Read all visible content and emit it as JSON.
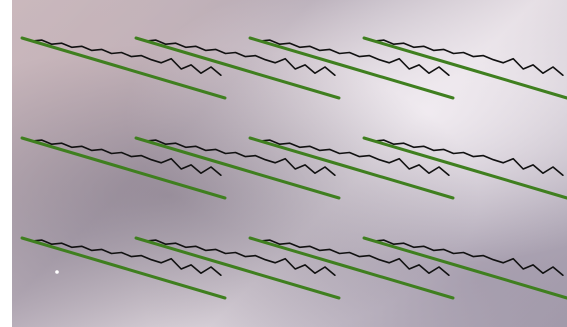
{
  "chart_data": [
    {
      "type": "line",
      "series": [
        {
          "color": "#111111",
          "values": [
            100,
            97,
            98,
            94,
            95,
            91,
            92,
            88,
            89,
            85,
            86,
            82,
            83,
            79,
            76,
            80,
            70,
            74,
            66,
            72,
            64
          ]
        },
        {
          "color": "#3f7f1f",
          "values": [
            100,
            71,
            42
          ]
        }
      ]
    },
    {
      "type": "line",
      "series": [
        {
          "color": "#111111",
          "values": [
            100,
            97,
            98,
            94,
            95,
            91,
            92,
            88,
            89,
            85,
            86,
            82,
            83,
            79,
            76,
            80,
            70,
            74,
            66,
            72,
            64
          ]
        },
        {
          "color": "#3f7f1f",
          "values": [
            100,
            71,
            42
          ]
        }
      ]
    },
    {
      "type": "line",
      "series": [
        {
          "color": "#111111",
          "values": [
            100,
            97,
            98,
            94,
            95,
            91,
            92,
            88,
            89,
            85,
            86,
            82,
            83,
            79,
            76,
            80,
            70,
            74,
            66,
            72,
            64
          ]
        },
        {
          "color": "#3f7f1f",
          "values": [
            100,
            71,
            42
          ]
        }
      ]
    },
    {
      "type": "line",
      "series": [
        {
          "color": "#111111",
          "values": [
            100,
            97,
            98,
            94,
            95,
            91,
            92,
            88,
            89,
            85,
            86,
            82,
            83,
            79,
            76,
            80,
            70,
            74,
            66,
            72,
            64
          ]
        },
        {
          "color": "#3f7f1f",
          "values": [
            100,
            71,
            42
          ]
        }
      ]
    },
    {
      "type": "line",
      "series": [
        {
          "color": "#111111",
          "values": [
            100,
            97,
            98,
            94,
            95,
            91,
            92,
            88,
            89,
            85,
            86,
            82,
            83,
            79,
            76,
            80,
            70,
            74,
            66,
            72,
            64
          ]
        },
        {
          "color": "#3f7f1f",
          "values": [
            100,
            71,
            42
          ]
        }
      ]
    },
    {
      "type": "line",
      "series": [
        {
          "color": "#111111",
          "values": [
            100,
            97,
            98,
            94,
            95,
            91,
            92,
            88,
            89,
            85,
            86,
            82,
            83,
            79,
            76,
            80,
            70,
            74,
            66,
            72,
            64
          ]
        },
        {
          "color": "#3f7f1f",
          "values": [
            100,
            71,
            42
          ]
        }
      ]
    },
    {
      "type": "line",
      "series": [
        {
          "color": "#111111",
          "values": [
            100,
            97,
            98,
            94,
            95,
            91,
            92,
            88,
            89,
            85,
            86,
            82,
            83,
            79,
            76,
            80,
            70,
            74,
            66,
            72,
            64
          ]
        },
        {
          "color": "#3f7f1f",
          "values": [
            100,
            71,
            42
          ]
        }
      ]
    },
    {
      "type": "line",
      "series": [
        {
          "color": "#111111",
          "values": [
            100,
            97,
            98,
            94,
            95,
            91,
            92,
            88,
            89,
            85,
            86,
            82,
            83,
            79,
            76,
            80,
            70,
            74,
            66,
            72,
            64
          ]
        },
        {
          "color": "#3f7f1f",
          "values": [
            100,
            71,
            42
          ]
        }
      ]
    },
    {
      "type": "line",
      "series": [
        {
          "color": "#111111",
          "values": [
            100,
            97,
            98,
            94,
            95,
            91,
            92,
            88,
            89,
            85,
            86,
            82,
            83,
            79,
            76,
            80,
            70,
            74,
            66,
            72,
            64
          ]
        },
        {
          "color": "#3f7f1f",
          "values": [
            100,
            71,
            42
          ]
        }
      ]
    },
    {
      "type": "line",
      "series": [
        {
          "color": "#111111",
          "values": [
            100,
            97,
            98,
            94,
            95,
            91,
            92,
            88,
            89,
            85,
            86,
            82,
            83,
            79,
            76,
            80,
            70,
            74,
            66,
            72,
            64
          ]
        },
        {
          "color": "#3f7f1f",
          "values": [
            100,
            71,
            42
          ]
        }
      ]
    },
    {
      "type": "line",
      "series": [
        {
          "color": "#111111",
          "values": [
            100,
            97,
            98,
            94,
            95,
            91,
            92,
            88,
            89,
            85,
            86,
            82,
            83,
            79,
            76,
            80,
            70,
            74,
            66,
            72,
            64
          ]
        },
        {
          "color": "#3f7f1f",
          "values": [
            100,
            71,
            42
          ]
        }
      ]
    },
    {
      "type": "line",
      "series": [
        {
          "color": "#111111",
          "values": [
            100,
            97,
            98,
            94,
            95,
            91,
            92,
            88,
            89,
            85,
            86,
            82,
            83,
            79,
            76,
            80,
            70,
            74,
            66,
            72,
            64
          ]
        },
        {
          "color": "#3f7f1f",
          "values": [
            100,
            71,
            42
          ]
        }
      ]
    }
  ]
}
